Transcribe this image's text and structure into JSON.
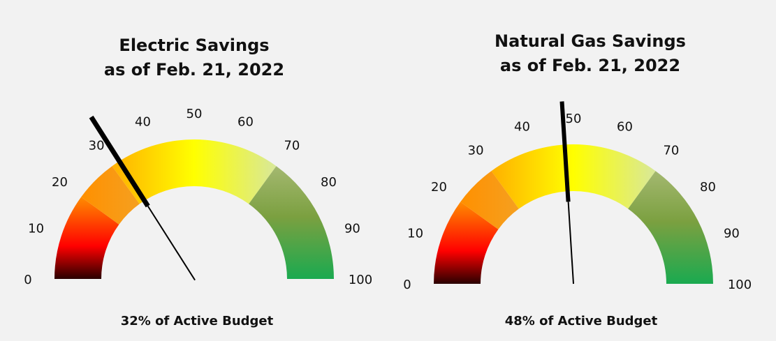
{
  "chart_data": [
    {
      "type": "gauge",
      "title_lines": [
        "Electric Savings",
        "as of Feb. 21, 2022"
      ],
      "range": [
        0,
        100
      ],
      "ticks": [
        "0",
        "10",
        "20",
        "30",
        "40",
        "50",
        "60",
        "70",
        "80",
        "90",
        "100"
      ],
      "value": 32,
      "caption": "32% of Active Budget",
      "colors": {
        "low": "#2a0000",
        "mid_low": "#ff8c00",
        "mid": "#ffff00",
        "mid_high": "#d4e89a",
        "high": "#1aaa50"
      }
    },
    {
      "type": "gauge",
      "title_lines": [
        "Natural Gas Savings",
        "as of Feb. 21, 2022"
      ],
      "range": [
        0,
        100
      ],
      "ticks": [
        "0",
        "10",
        "20",
        "30",
        "40",
        "50",
        "60",
        "70",
        "80",
        "90",
        "100"
      ],
      "value": 48,
      "caption": "48% of Active Budget",
      "colors": {
        "low": "#2a0000",
        "mid_low": "#ff8c00",
        "mid": "#ffff00",
        "mid_high": "#d4e89a",
        "high": "#1aaa50"
      }
    }
  ]
}
